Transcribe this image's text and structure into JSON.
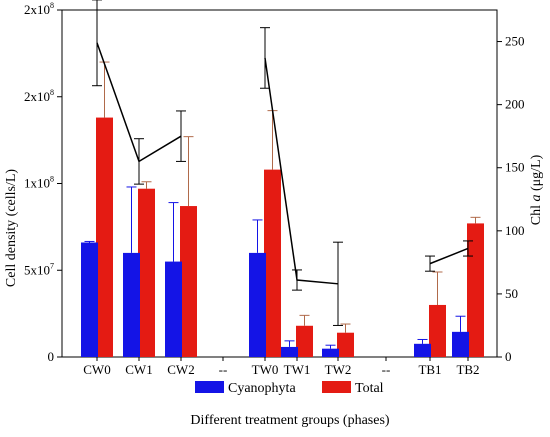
{
  "chart_data": {
    "type": "bar",
    "title": "",
    "xlabel": "Different treatment groups (phases)",
    "ylabel": "Cell density (cells/L)",
    "y2label_prefix": "Chl ",
    "y2label_var": "a",
    "y2label_suffix": " (μg/L)",
    "ylim": [
      0,
      200000000
    ],
    "y2lim": [
      0,
      275
    ],
    "yticks": [
      {
        "value": 0,
        "label": "0"
      },
      {
        "value": 50000000,
        "label": "5x10",
        "exp": "7"
      },
      {
        "value": 100000000,
        "label": "1x10",
        "exp": "8"
      },
      {
        "value": 150000000,
        "label": "2x10",
        "exp": "8"
      },
      {
        "value": 200000000,
        "label": "2x10",
        "exp": "8"
      }
    ],
    "y2ticks": [
      0,
      50,
      100,
      150,
      200,
      250
    ],
    "categories": [
      "CW0",
      "CW1",
      "CW2",
      "--",
      "TW0",
      "TW1",
      "TW2",
      "--",
      "TB1",
      "TB2"
    ],
    "series": [
      {
        "name": "Cyanophyta",
        "color": "#1414e6",
        "values": [
          66000000,
          60000000,
          55000000,
          null,
          60000000,
          5800000,
          4800000,
          null,
          7600000,
          14500000
        ],
        "errors": [
          600000,
          38000000,
          34000000,
          null,
          19000000,
          3500000,
          2000000,
          null,
          2500000,
          9000000
        ]
      },
      {
        "name": "Total",
        "color": "#e41b13",
        "values": [
          138000000,
          97000000,
          87000000,
          null,
          108000000,
          18000000,
          14000000,
          null,
          30000000,
          77000000
        ],
        "errors": [
          32000000,
          4000000,
          40000000,
          null,
          34000000,
          6000000,
          5000000,
          null,
          19000000,
          3500000
        ]
      }
    ],
    "line": {
      "name": "Chl a",
      "color": "#000000",
      "values": [
        249,
        155,
        175,
        null,
        237,
        61,
        58,
        null,
        74,
        86
      ],
      "errors": [
        34,
        18,
        20,
        null,
        24,
        8,
        33,
        null,
        6,
        6
      ]
    },
    "legend": {
      "placement": "bottom",
      "items": [
        "Cyanophyta",
        "Total"
      ]
    },
    "grid": false
  }
}
